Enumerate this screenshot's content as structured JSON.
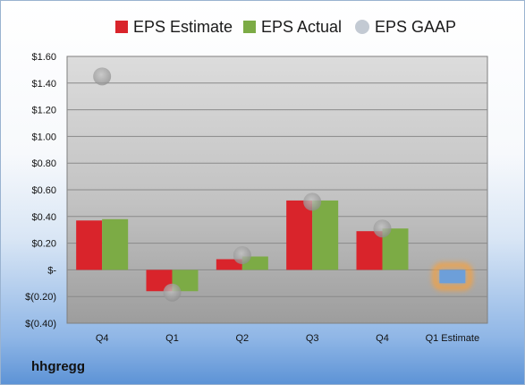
{
  "company": "hhgregg",
  "chart_data": {
    "type": "bar",
    "categories": [
      "Q4",
      "Q1",
      "Q2",
      "Q3",
      "Q4",
      "Q1 Estimate"
    ],
    "series": [
      {
        "name": "EPS Estimate",
        "values": [
          0.37,
          -0.16,
          0.08,
          0.52,
          0.29,
          null
        ],
        "color": "#d9242b"
      },
      {
        "name": "EPS Actual",
        "values": [
          0.38,
          -0.16,
          0.1,
          0.52,
          0.31,
          null
        ],
        "color": "#7cab45"
      },
      {
        "name": "EPS GAAP",
        "values": [
          1.45,
          -0.17,
          0.11,
          0.51,
          0.31,
          null
        ],
        "color": "#a7a7a7",
        "marker": "circle"
      }
    ],
    "estimate": {
      "category": "Q1 Estimate",
      "value": -0.1,
      "color": "#6d9fd9",
      "glow": "#f4a041"
    },
    "ylim": [
      -0.4,
      1.6
    ],
    "yticks": [
      -0.4,
      -0.2,
      0.0,
      0.2,
      0.4,
      0.6,
      0.8,
      1.0,
      1.2,
      1.4,
      1.6
    ],
    "ytick_labels": [
      "$(0.40)",
      "$(0.20)",
      "$-",
      "$0.20",
      "$0.40",
      "$0.60",
      "$0.80",
      "$1.00",
      "$1.20",
      "$1.40",
      "$1.60"
    ],
    "grid": true,
    "legend": "top",
    "title": "",
    "xlabel": "",
    "ylabel": ""
  }
}
